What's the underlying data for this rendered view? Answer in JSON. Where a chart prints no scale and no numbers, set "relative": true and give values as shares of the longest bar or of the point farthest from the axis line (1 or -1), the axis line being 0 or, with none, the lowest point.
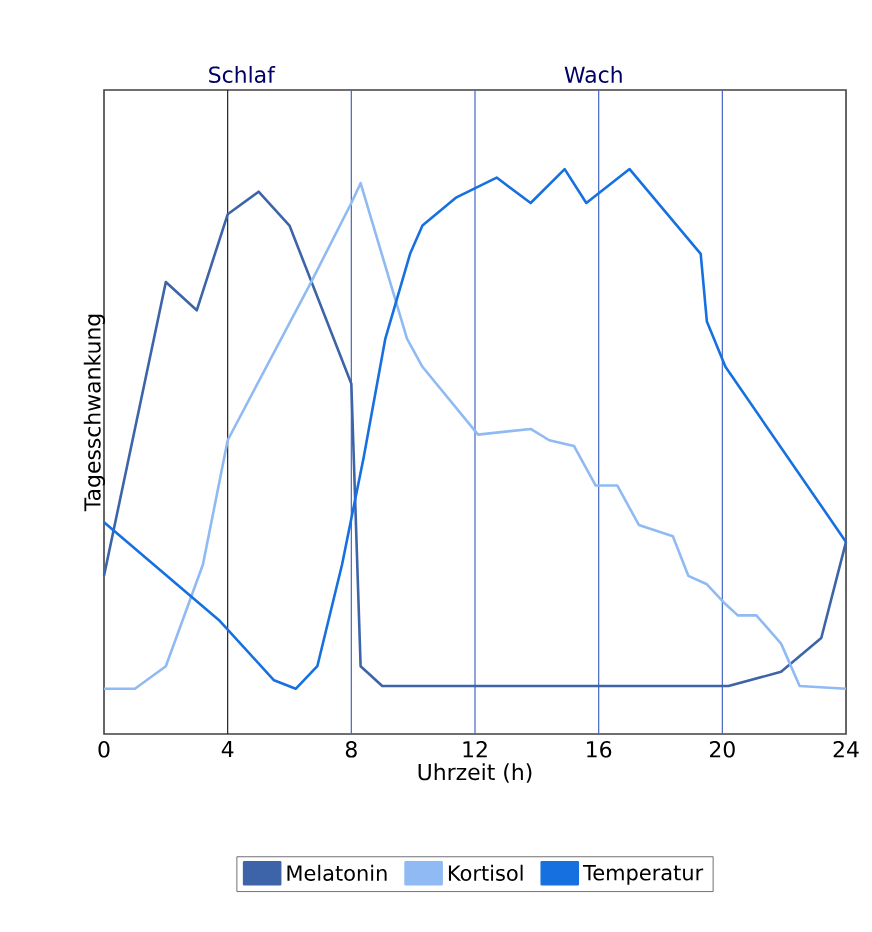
{
  "chart_data": {
    "type": "line",
    "relative": true,
    "xlabel": "Uhrzeit (h)",
    "ylabel": "Tagesschwankung",
    "xlim": [
      0,
      24
    ],
    "xticks": [
      0,
      4,
      8,
      12,
      16,
      20,
      24
    ],
    "legend": "bottom",
    "grid": false,
    "marker": "none",
    "line_style": "solid",
    "series": [
      {
        "name": "Melatonin",
        "color": "#3d64a8",
        "x": [
          0,
          2,
          3,
          4,
          5,
          6,
          8,
          8.3,
          9,
          20.2,
          21.9,
          23.2,
          24
        ],
        "values": [
          0.28,
          0.8,
          0.75,
          0.92,
          0.96,
          0.9,
          0.62,
          0.12,
          0.085,
          0.085,
          0.11,
          0.17,
          0.34
        ]
      },
      {
        "name": "Kortisol",
        "color": "#8fbaf3",
        "x": [
          0,
          1,
          2,
          3.2,
          4,
          6.7,
          8,
          8.3,
          9.8,
          10.3,
          12.1,
          13.8,
          14.4,
          15.2,
          15.9,
          16.6,
          17.3,
          18.4,
          18.9,
          19.5,
          20.1,
          20.5,
          21.1,
          21.9,
          22.5,
          24
        ],
        "values": [
          0.08,
          0.08,
          0.12,
          0.3,
          0.52,
          0.8,
          0.94,
          0.975,
          0.7,
          0.65,
          0.53,
          0.54,
          0.52,
          0.51,
          0.44,
          0.44,
          0.37,
          0.35,
          0.28,
          0.265,
          0.23,
          0.21,
          0.21,
          0.16,
          0.085,
          0.08
        ]
      },
      {
        "name": "Temperatur",
        "color": "#1670e0",
        "x": [
          0,
          3.75,
          5.5,
          6.2,
          6.9,
          7.7,
          8.4,
          9.1,
          9.9,
          10.3,
          11.4,
          12.7,
          13.8,
          14.9,
          15.6,
          17.0,
          19.3,
          19.5,
          20.1,
          24
        ],
        "values": [
          0.375,
          0.2,
          0.095,
          0.08,
          0.12,
          0.3,
          0.49,
          0.7,
          0.85,
          0.9,
          0.95,
          0.985,
          0.94,
          1.0,
          0.94,
          1.0,
          0.85,
          0.73,
          0.65,
          0.34
        ]
      }
    ],
    "ref_lines": [
      {
        "axis": "x",
        "value": 4,
        "color": "#222222"
      },
      {
        "axis": "x",
        "value": 8,
        "color": "#4466c4"
      },
      {
        "axis": "x",
        "value": 12,
        "color": "#4466c4"
      },
      {
        "axis": "x",
        "value": 16,
        "color": "#4466c4"
      },
      {
        "axis": "x",
        "value": 20,
        "color": "#4466c4"
      }
    ],
    "annotations": [
      "Schlaf",
      "Wach"
    ]
  }
}
